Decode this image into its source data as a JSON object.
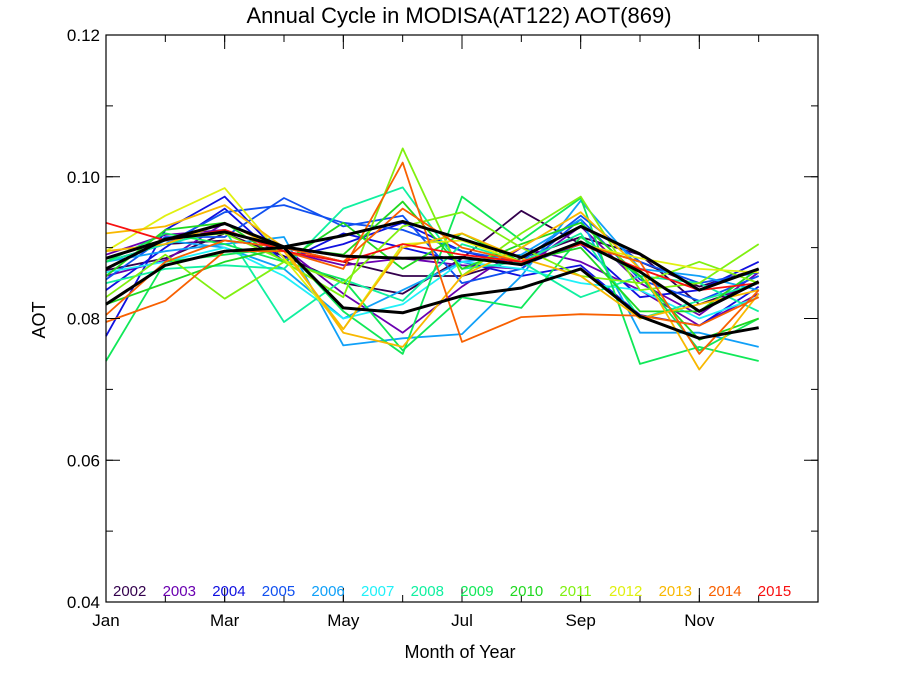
{
  "chart_data": {
    "type": "line",
    "title": "Annual Cycle in MODISA(AT122) AOT(869)",
    "xlabel": "Month of Year",
    "ylabel": "AOT",
    "xlim": [
      1,
      13
    ],
    "ylim": [
      0.04,
      0.12
    ],
    "x_ticks": [
      {
        "value": 1,
        "label": "Jan"
      },
      {
        "value": 3,
        "label": "Mar"
      },
      {
        "value": 5,
        "label": "May"
      },
      {
        "value": 7,
        "label": "Jul"
      },
      {
        "value": 9,
        "label": "Sep"
      },
      {
        "value": 11,
        "label": "Nov"
      }
    ],
    "x_minor_step": 1,
    "y_ticks": [
      {
        "value": 0.04,
        "label": "0.04"
      },
      {
        "value": 0.06,
        "label": "0.06"
      },
      {
        "value": 0.08,
        "label": "0.08"
      },
      {
        "value": 0.1,
        "label": "0.10"
      },
      {
        "value": 0.12,
        "label": "0.12"
      }
    ],
    "y_minor_step": 0.01,
    "grid": false,
    "legend_position": "bottom (inside plot, horizontal row)",
    "x": [
      1,
      2,
      3,
      4,
      5,
      6,
      7,
      8,
      9,
      10,
      11,
      12
    ],
    "series": [
      {
        "name": "2002",
        "color": "#33004d",
        "values": [
          0.0868,
          0.0885,
          0.092,
          0.0888,
          0.085,
          0.0835,
          0.0885,
          0.0952,
          0.0905,
          0.088,
          0.0845,
          0.087
        ]
      },
      {
        "name": "2002",
        "color": "#33004d",
        "values": [
          0.088,
          0.0905,
          0.091,
          0.09,
          0.088,
          0.086,
          0.086,
          0.0885,
          0.0915,
          0.089,
          0.082,
          0.085
        ]
      },
      {
        "name": "2003",
        "color": "#6a00b0",
        "values": [
          0.086,
          0.0882,
          0.0935,
          0.09,
          0.0835,
          0.078,
          0.0845,
          0.09,
          0.088,
          0.084,
          0.079,
          0.0835
        ]
      },
      {
        "name": "2003",
        "color": "#6a00b0",
        "values": [
          0.089,
          0.0918,
          0.0925,
          0.0895,
          0.0875,
          0.0885,
          0.0875,
          0.087,
          0.093,
          0.085,
          0.0805,
          0.0865
        ]
      },
      {
        "name": "2004",
        "color": "#1010e0",
        "values": [
          0.0775,
          0.0925,
          0.0972,
          0.0885,
          0.0905,
          0.0935,
          0.0895,
          0.0875,
          0.0905,
          0.083,
          0.084,
          0.088
        ]
      },
      {
        "name": "2004",
        "color": "#1010e0",
        "values": [
          0.084,
          0.09,
          0.0955,
          0.088,
          0.092,
          0.09,
          0.088,
          0.086,
          0.0875,
          0.0805,
          0.079,
          0.0845
        ]
      },
      {
        "name": "2005",
        "color": "#1050f0",
        "values": [
          0.0855,
          0.0915,
          0.0915,
          0.097,
          0.093,
          0.0945,
          0.085,
          0.087,
          0.094,
          0.0855,
          0.0825,
          0.086
        ]
      },
      {
        "name": "2005",
        "color": "#1050f0",
        "values": [
          0.088,
          0.0905,
          0.095,
          0.096,
          0.0935,
          0.0925,
          0.0895,
          0.088,
          0.0945,
          0.088,
          0.085,
          0.0865
        ]
      },
      {
        "name": "2006",
        "color": "#10a0f8",
        "values": [
          0.088,
          0.0895,
          0.0905,
          0.0915,
          0.0762,
          0.0772,
          0.0778,
          0.086,
          0.0966,
          0.087,
          0.086,
          0.084
        ]
      },
      {
        "name": "2006",
        "color": "#10a0f8",
        "values": [
          0.087,
          0.091,
          0.09,
          0.087,
          0.08,
          0.084,
          0.088,
          0.089,
          0.094,
          0.078,
          0.078,
          0.076
        ]
      },
      {
        "name": "2007",
        "color": "#20f0f8",
        "values": [
          0.0865,
          0.088,
          0.09,
          0.086,
          0.08,
          0.082,
          0.088,
          0.087,
          0.085,
          0.084,
          0.08,
          0.083
        ]
      },
      {
        "name": "2008",
        "color": "#10f0a0",
        "values": [
          0.085,
          0.087,
          0.0875,
          0.087,
          0.0955,
          0.0985,
          0.087,
          0.088,
          0.083,
          0.086,
          0.085,
          0.081
        ]
      },
      {
        "name": "2008",
        "color": "#10f0a0",
        "values": [
          0.088,
          0.0905,
          0.0925,
          0.0795,
          0.0855,
          0.0825,
          0.0905,
          0.088,
          0.092,
          0.08,
          0.0825,
          0.085
        ]
      },
      {
        "name": "2009",
        "color": "#10e858",
        "values": [
          0.074,
          0.088,
          0.089,
          0.09,
          0.081,
          0.075,
          0.0972,
          0.091,
          0.097,
          0.0736,
          0.076,
          0.074
        ]
      },
      {
        "name": "2009",
        "color": "#10e858",
        "values": [
          0.088,
          0.092,
          0.0905,
          0.088,
          0.0855,
          0.0755,
          0.083,
          0.0815,
          0.0915,
          0.086,
          0.0755,
          0.08
        ]
      },
      {
        "name": "2010",
        "color": "#20d820",
        "values": [
          0.082,
          0.085,
          0.088,
          0.09,
          0.089,
          0.0965,
          0.087,
          0.0905,
          0.0935,
          0.086,
          0.077,
          0.08
        ]
      },
      {
        "name": "2010",
        "color": "#20d820",
        "values": [
          0.086,
          0.0925,
          0.0935,
          0.088,
          0.0935,
          0.087,
          0.092,
          0.088,
          0.09,
          0.081,
          0.081,
          0.087
        ]
      },
      {
        "name": "2011",
        "color": "#80f010",
        "values": [
          0.083,
          0.089,
          0.0828,
          0.088,
          0.083,
          0.104,
          0.086,
          0.092,
          0.0972,
          0.084,
          0.085,
          0.0905
        ]
      },
      {
        "name": "2011",
        "color": "#80f010",
        "values": [
          0.0885,
          0.0912,
          0.092,
          0.0882,
          0.085,
          0.093,
          0.095,
          0.09,
          0.086,
          0.085,
          0.088,
          0.085
        ]
      },
      {
        "name": "2012",
        "color": "#e0f010",
        "values": [
          0.0895,
          0.0945,
          0.0984,
          0.0885,
          0.0785,
          0.0905,
          0.091,
          0.088,
          0.0905,
          0.0885,
          0.087,
          0.0865
        ]
      },
      {
        "name": "2013",
        "color": "#f8b800",
        "values": [
          0.092,
          0.093,
          0.096,
          0.09,
          0.078,
          0.076,
          0.086,
          0.09,
          0.095,
          0.087,
          0.0728,
          0.0835
        ]
      },
      {
        "name": "2013",
        "color": "#f8b800",
        "values": [
          0.0895,
          0.0905,
          0.0935,
          0.0895,
          0.0785,
          0.09,
          0.092,
          0.0885,
          0.086,
          0.08,
          0.082,
          0.084
        ]
      },
      {
        "name": "2014",
        "color": "#f86000",
        "values": [
          0.0795,
          0.0825,
          0.0895,
          0.0895,
          0.087,
          0.102,
          0.0767,
          0.0802,
          0.0806,
          0.0804,
          0.079,
          0.083
        ]
      },
      {
        "name": "2014",
        "color": "#f86000",
        "values": [
          0.0805,
          0.088,
          0.091,
          0.09,
          0.088,
          0.0955,
          0.09,
          0.088,
          0.0905,
          0.088,
          0.075,
          0.084
        ]
      },
      {
        "name": "2015",
        "color": "#f81010",
        "values": [
          0.0935,
          0.091,
          0.0925,
          0.0895,
          0.088,
          0.0905,
          0.089,
          0.088,
          0.0905,
          0.087,
          0.084,
          0.085
        ]
      },
      {
        "name": "",
        "color": "#000000",
        "values": [
          0.087,
          0.0912,
          0.0922,
          0.0901,
          0.0888,
          0.0885,
          0.0886,
          0.0876,
          0.0908,
          0.0866,
          0.081,
          0.0852
        ]
      },
      {
        "name": "",
        "color": "#000000",
        "values": [
          0.082,
          0.0875,
          0.0895,
          0.09,
          0.0815,
          0.0808,
          0.0832,
          0.0843,
          0.087,
          0.0803,
          0.0772,
          0.0787
        ]
      },
      {
        "name": "",
        "color": "#000000",
        "values": [
          0.0885,
          0.0911,
          0.0934,
          0.0901,
          0.0917,
          0.0937,
          0.0912,
          0.0886,
          0.093,
          0.0891,
          0.084,
          0.087
        ]
      }
    ],
    "legend": [
      {
        "label": "2002",
        "color": "#33004d"
      },
      {
        "label": "2003",
        "color": "#6a00b0"
      },
      {
        "label": "2004",
        "color": "#1010e0"
      },
      {
        "label": "2005",
        "color": "#1050f0"
      },
      {
        "label": "2006",
        "color": "#10a0f8"
      },
      {
        "label": "2007",
        "color": "#20f0f8"
      },
      {
        "label": "2008",
        "color": "#10f0a0"
      },
      {
        "label": "2009",
        "color": "#10e858"
      },
      {
        "label": "2010",
        "color": "#20d820"
      },
      {
        "label": "2011",
        "color": "#80f010"
      },
      {
        "label": "2012",
        "color": "#e0f010"
      },
      {
        "label": "2013",
        "color": "#f8b800"
      },
      {
        "label": "2014",
        "color": "#f86000"
      },
      {
        "label": "2015",
        "color": "#f81010"
      }
    ]
  }
}
